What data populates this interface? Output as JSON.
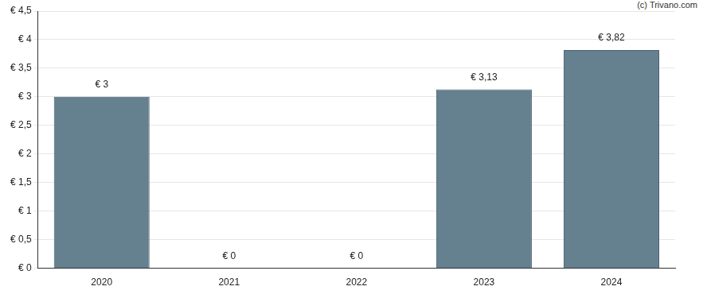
{
  "chart_data": {
    "type": "bar",
    "source": "(c) Trivano.com",
    "categories": [
      "2020",
      "2021",
      "2022",
      "2023",
      "2024"
    ],
    "values": [
      3,
      0,
      0,
      3.13,
      3.82
    ],
    "value_labels": [
      "€ 3",
      "€ 0",
      "€ 0",
      "€ 3,13",
      "€ 3,82"
    ],
    "color": "#65808f",
    "ylim": [
      0,
      4.5
    ],
    "yticks": [
      {
        "value": 0,
        "label": "€ 0"
      },
      {
        "value": 0.5,
        "label": "€ 0,5"
      },
      {
        "value": 1,
        "label": "€ 1"
      },
      {
        "value": 1.5,
        "label": "€ 1,5"
      },
      {
        "value": 2,
        "label": "€ 2"
      },
      {
        "value": 2.5,
        "label": "€ 2,5"
      },
      {
        "value": 3,
        "label": "€ 3"
      },
      {
        "value": 3.5,
        "label": "€ 3,5"
      },
      {
        "value": 4,
        "label": "€ 4"
      },
      {
        "value": 4.5,
        "label": "€ 4,5"
      }
    ],
    "grid": true,
    "data_labels": true
  }
}
